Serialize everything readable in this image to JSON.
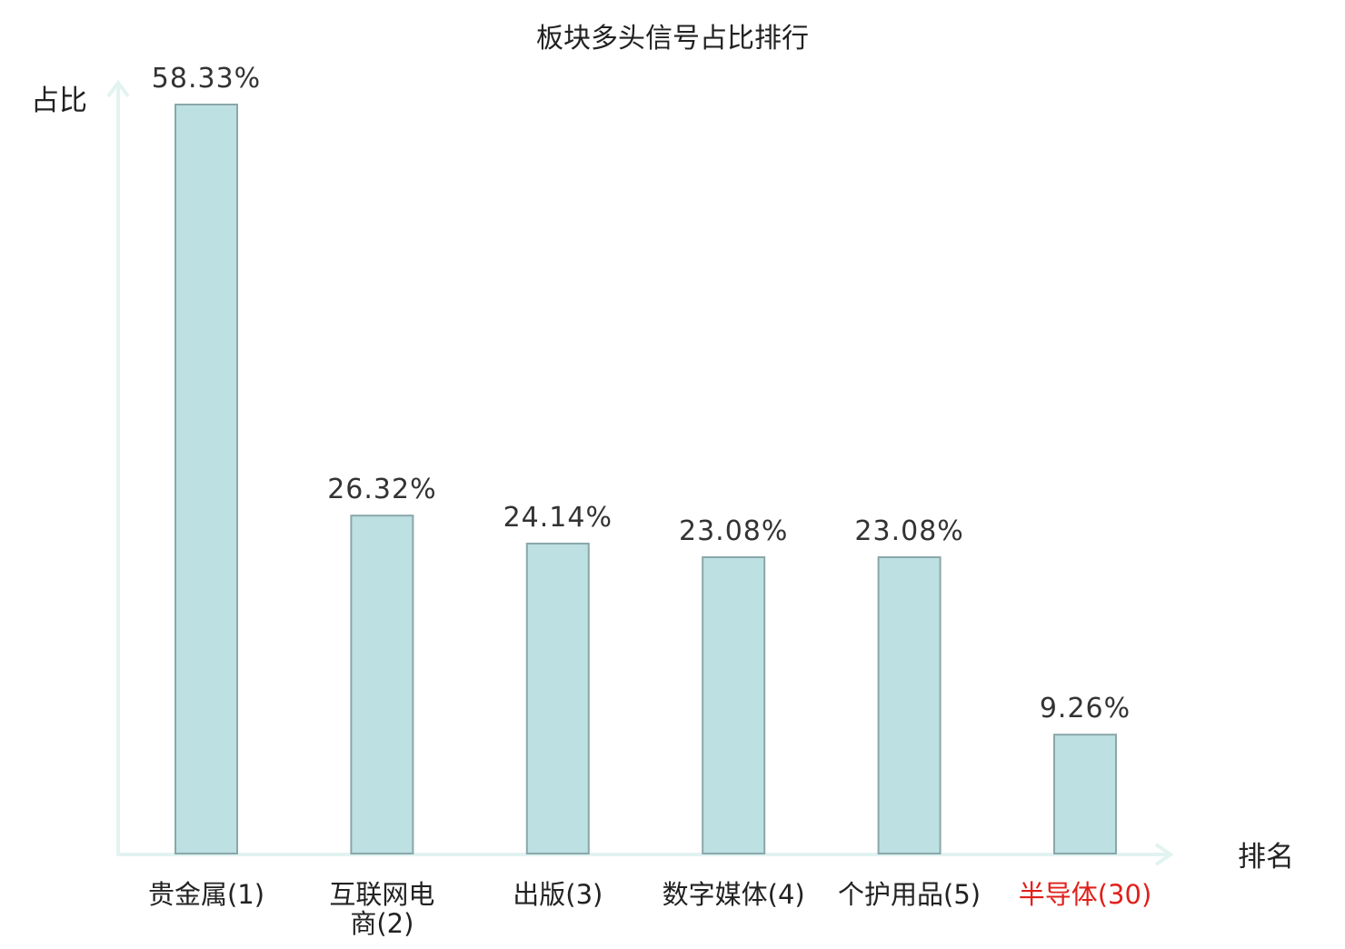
{
  "chart_data": {
    "type": "bar",
    "title": "板块多头信号占比排行",
    "ylabel": "占比",
    "xlabel": "排名",
    "categories": [
      [
        "贵金属(1)"
      ],
      [
        "互联网电",
        "商(2)"
      ],
      [
        "出版(3)"
      ],
      [
        "数字媒体(4)"
      ],
      [
        "个护用品(5)"
      ],
      [
        "半导体(30)"
      ]
    ],
    "values": [
      58.33,
      26.32,
      24.14,
      23.08,
      23.08,
      9.26
    ],
    "value_labels": [
      "58.33%",
      "26.32%",
      "24.14%",
      "23.08%",
      "23.08%",
      "9.26%"
    ],
    "highlight_index": 5,
    "ylim": [
      0,
      58.33
    ],
    "grid": false,
    "legend": "none"
  },
  "colors": {
    "bar_fill": "#bde0e3",
    "bar_stroke": "#8aa7aa",
    "axis": "#e2f3f1",
    "highlight": "#e0201b",
    "text": "#222222"
  }
}
